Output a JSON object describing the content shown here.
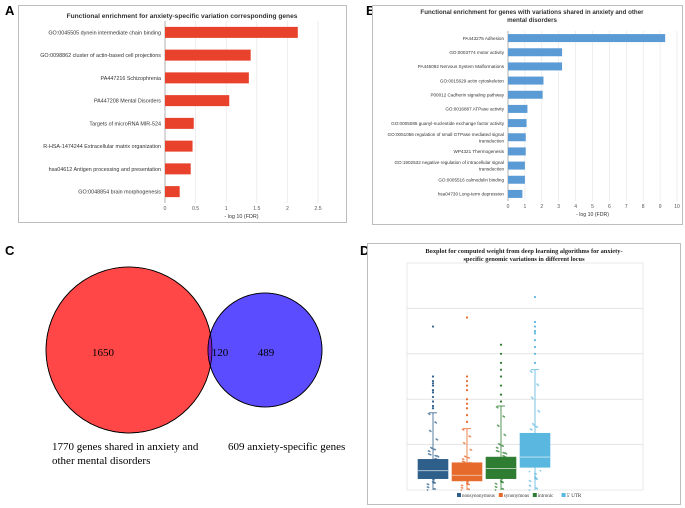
{
  "panel_letters": [
    "A",
    "B",
    "C",
    "D"
  ],
  "chart_data": [
    {
      "panel": "A",
      "type": "bar",
      "orientation": "horizontal",
      "title": "Functional enrichment for anxiety-specific variation corresponding genes",
      "xlabel": "- log 10 (FDR)",
      "xlim": [
        0,
        2.5
      ],
      "xticks": [
        "0",
        "0.5",
        "1",
        "1.5",
        "2",
        "2.5"
      ],
      "color": "#e8412c",
      "categories": [
        "GO:0045505 dynein intermediate chain binding",
        "GO:0098862 cluster of actin-based cell projections",
        "PA447216 Schizophrenia",
        "PA447208 Mental Disorders",
        "Targets of microRNA MIR-524",
        "R-HSA-1474244 Extracellular matrix organization",
        "hsa04612 Antigen processing and presentation",
        "GO:0048854 brain morphogenesis"
      ],
      "values": [
        2.17,
        1.4,
        1.37,
        1.05,
        0.47,
        0.45,
        0.42,
        0.24
      ]
    },
    {
      "panel": "B",
      "type": "bar",
      "orientation": "horizontal",
      "title_lines": [
        "Functional enrichment for genes with variations shared in anxiety and other",
        "mental disorders"
      ],
      "xlabel": "- log 10 (FDR)",
      "xlim": [
        0,
        10
      ],
      "xticks": [
        "0",
        "1",
        "2",
        "3",
        "4",
        "5",
        "6",
        "7",
        "8",
        "9",
        "10"
      ],
      "color": "#5b9bd5",
      "categories": [
        [
          "PA443275 Adhesion"
        ],
        [
          "GO:0003774 motor activity"
        ],
        [
          "PA445092 Nervous System Malformations"
        ],
        [
          "GO:0015629 actin cytoskeleton"
        ],
        [
          "P00012 Cadherin signaling pathway"
        ],
        [
          "GO:0016887 ATPase activity"
        ],
        [
          "GO:0005085 guanyl-nucleotide exchange factor activity"
        ],
        [
          "GO:0051056 regulation of small GTPase mediated signal",
          "transduction"
        ],
        [
          "WP4321 Thermogenesis"
        ],
        [
          "GO:1902532 negative regulation of intracellular signal",
          "transduction"
        ],
        [
          "GO:0005516 calmodulin binding"
        ],
        [
          "hsa04730 Long-term depression"
        ]
      ],
      "values": [
        9.3,
        3.2,
        3.2,
        2.1,
        2.05,
        1.15,
        1.1,
        1.05,
        1.05,
        1.0,
        1.0,
        0.85
      ]
    },
    {
      "panel": "C",
      "type": "venn",
      "sets": [
        {
          "name": "1770 genes shared in anxiety and other mental disorders",
          "label_lines": [
            "1770 genes shared in anxiety and",
            "other mental disorders"
          ],
          "only": "1650",
          "color": "#ff4747"
        },
        {
          "name": "609 anxiety-specific genes",
          "label_lines": [
            "609 anxiety-specific genes"
          ],
          "only": "489",
          "color": "#5b4cff"
        }
      ],
      "intersection": "120",
      "intersection_color": "#7d1fd1"
    },
    {
      "panel": "D",
      "type": "boxplot",
      "title_lines": [
        "Boxplot for computed weight from deep learning algorithms for anxiety-",
        "specific genomic variations in different locus"
      ],
      "ylim": [
        0,
        1
      ],
      "legend_position": "bottom",
      "series": [
        {
          "name": "nonsynonymous",
          "color": "#2e5f8a",
          "q1": 0.05,
          "median": 0.085,
          "q3": 0.135,
          "whisker_low": 0.0,
          "whisker_high": 0.34,
          "outliers": [
            0.36,
            0.37,
            0.39,
            0.41,
            0.43,
            0.44,
            0.46,
            0.47,
            0.48,
            0.5,
            0.72
          ]
        },
        {
          "name": "synonymous",
          "color": "#e66a2c",
          "q1": 0.04,
          "median": 0.065,
          "q3": 0.12,
          "whisker_low": 0.0,
          "whisker_high": 0.27,
          "outliers": [
            0.3,
            0.33,
            0.36,
            0.38,
            0.4,
            0.44,
            0.46,
            0.48,
            0.5,
            0.76
          ]
        },
        {
          "name": "intronic",
          "color": "#2f7d32",
          "q1": 0.05,
          "median": 0.095,
          "q3": 0.145,
          "whisker_low": 0.0,
          "whisker_high": 0.37,
          "outliers": [
            0.39,
            0.42,
            0.46,
            0.5,
            0.53,
            0.56,
            0.6,
            0.64
          ]
        },
        {
          "name": "5' UTR",
          "color": "#59b7e0",
          "q1": 0.1,
          "median": 0.145,
          "q3": 0.25,
          "whisker_low": 0.0,
          "whisker_high": 0.53,
          "outliers": [
            0.56,
            0.6,
            0.63,
            0.66,
            0.69,
            0.7,
            0.72,
            0.74,
            0.85
          ]
        }
      ]
    }
  ]
}
